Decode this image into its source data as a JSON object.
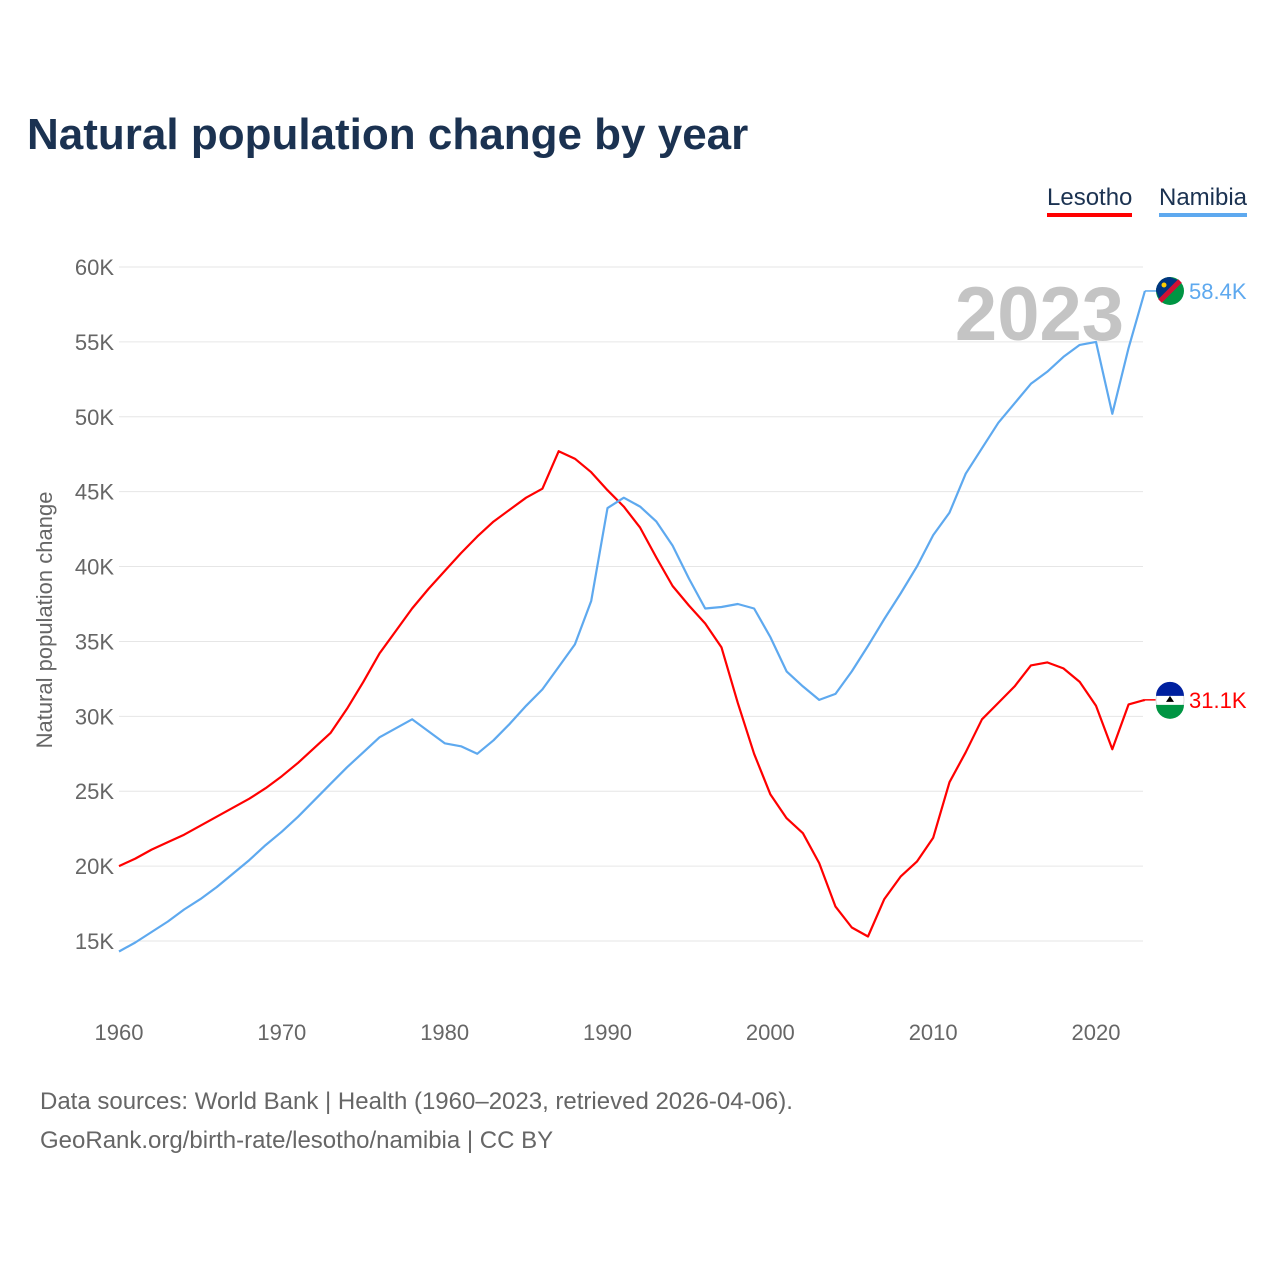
{
  "chart_data": {
    "type": "line",
    "title": "Natural population change by year",
    "xlabel": "",
    "ylabel": "Natural population change",
    "xlim": [
      1960,
      2023
    ],
    "ylim": [
      12500,
      62500
    ],
    "yticks": [
      15000,
      20000,
      25000,
      30000,
      35000,
      40000,
      45000,
      50000,
      55000,
      60000
    ],
    "ytick_labels": [
      "15K",
      "20K",
      "25K",
      "30K",
      "35K",
      "40K",
      "45K",
      "50K",
      "55K",
      "60K"
    ],
    "xticks": [
      1960,
      1970,
      1980,
      1990,
      2000,
      2010,
      2020
    ],
    "xtick_labels": [
      "1960",
      "1970",
      "1980",
      "1990",
      "2000",
      "2010",
      "2020"
    ],
    "grid": true,
    "legend_position": "top-right",
    "year_annotation": "2023",
    "x_start": 1960,
    "series": [
      {
        "name": "Lesotho",
        "color": "#ff0000",
        "end_label": "31.1K",
        "values": [
          20000,
          20500,
          21100,
          21600,
          22100,
          22700,
          23300,
          23900,
          24500,
          25200,
          26000,
          26900,
          27900,
          28900,
          30500,
          32300,
          34200,
          35700,
          37200,
          38500,
          39700,
          40900,
          42000,
          43000,
          43800,
          44600,
          45200,
          47700,
          47200,
          46300,
          45100,
          44000,
          42600,
          40600,
          38700,
          37400,
          36200,
          34600,
          30900,
          27500,
          24800,
          23200,
          22200,
          20200,
          17300,
          15900,
          15300,
          17800,
          19300,
          20300,
          21900,
          25600,
          27600,
          29800,
          30900,
          32000,
          33400,
          33600,
          33200,
          32300,
          30700,
          27800,
          30800,
          31100
        ]
      },
      {
        "name": "Namibia",
        "color": "#5ea9ef",
        "end_label": "58.4K",
        "values": [
          14300,
          14900,
          15600,
          16300,
          17100,
          17800,
          18600,
          19500,
          20400,
          21400,
          22300,
          23300,
          24400,
          25500,
          26600,
          27600,
          28600,
          29200,
          29800,
          29000,
          28200,
          28000,
          27500,
          28400,
          29500,
          30700,
          31800,
          33300,
          34800,
          37700,
          43900,
          44600,
          44000,
          43000,
          41400,
          39200,
          37200,
          37300,
          37500,
          37200,
          35300,
          33000,
          32000,
          31100,
          31500,
          33000,
          34700,
          36500,
          38200,
          40000,
          42100,
          43600,
          46200,
          47900,
          49600,
          50900,
          52200,
          53000,
          54000,
          54800,
          55000,
          50200,
          54600,
          58400
        ]
      }
    ]
  },
  "footer": {
    "line1": "Data sources: World Bank | Health (1960–2023, retrieved 2026-04-06).",
    "line2": "GeoRank.org/birth-rate/lesotho/namibia | CC BY"
  }
}
